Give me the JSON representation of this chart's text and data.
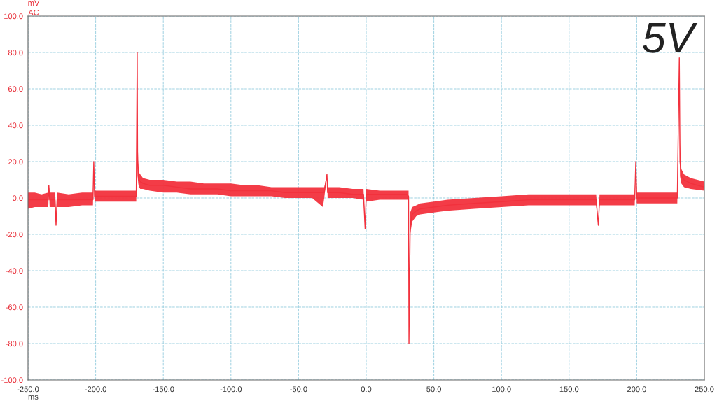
{
  "chart_data": {
    "type": "line",
    "title": "5V",
    "xlabel": "ms",
    "ylabel": "mV\nAC",
    "xlim": [
      -250,
      250
    ],
    "ylim": [
      -100,
      100
    ],
    "xticks": [
      {
        "value": -250,
        "label": "-250.0"
      },
      {
        "value": -200,
        "label": "-200.0"
      },
      {
        "value": -150,
        "label": "-150.0"
      },
      {
        "value": -100,
        "label": "-100.0"
      },
      {
        "value": -50,
        "label": "-50.0"
      },
      {
        "value": 0,
        "label": "0.0"
      },
      {
        "value": 50,
        "label": "50.0"
      },
      {
        "value": 100,
        "label": "100.0"
      },
      {
        "value": 150,
        "label": "150.0"
      },
      {
        "value": 200,
        "label": "200.0"
      },
      {
        "value": 250,
        "label": "250.0"
      }
    ],
    "yticks": [
      {
        "value": -100,
        "label": "-100.0"
      },
      {
        "value": -80,
        "label": "-80.0"
      },
      {
        "value": -60,
        "label": "-60.0"
      },
      {
        "value": -40,
        "label": "-40.0"
      },
      {
        "value": -20,
        "label": "-20.0"
      },
      {
        "value": 0,
        "label": "0.0"
      },
      {
        "value": 20,
        "label": "20.0"
      },
      {
        "value": 40,
        "label": "40.0"
      },
      {
        "value": 60,
        "label": "60.0"
      },
      {
        "value": 80,
        "label": "80.0"
      },
      {
        "value": 100,
        "label": "100.0"
      }
    ],
    "grid": true,
    "line_style": "solid",
    "series": [
      {
        "color": "#f2313d",
        "x": [
          -250,
          -245,
          -240,
          -235,
          -234.6,
          -234,
          -230,
          -229.3,
          -228.5,
          -220,
          -210,
          -202,
          -201.4,
          -200.8,
          -190,
          -180,
          -170,
          -169.3,
          -169,
          -168.5,
          -168,
          -167,
          -165,
          -160,
          -150,
          -140,
          -130,
          -120,
          -110,
          -100,
          -90,
          -80,
          -70,
          -60,
          -50,
          -40,
          -32,
          -31,
          -29,
          -28.5,
          -25,
          -20,
          -10,
          -2,
          -0.8,
          0,
          10,
          20,
          30,
          31.3,
          31.6,
          32.5,
          34,
          37,
          40,
          50,
          60,
          80,
          100,
          120,
          140,
          160,
          170,
          171.6,
          172.5,
          180,
          190,
          198.5,
          199.3,
          200,
          210,
          220,
          230,
          231.5,
          232,
          233,
          235,
          240,
          250
        ],
        "values": [
          -1,
          -1,
          -1,
          -1,
          7,
          -1,
          -1,
          -15,
          -1,
          -1,
          -1,
          -1,
          20,
          1,
          1,
          1,
          1,
          80,
          20,
          12,
          10,
          9,
          8,
          7,
          7,
          6,
          5,
          5,
          5,
          4,
          4,
          4,
          4,
          3,
          3,
          3,
          3,
          3,
          13,
          3,
          3,
          3,
          2,
          2,
          -17,
          2,
          2,
          2,
          2,
          1,
          -80,
          -15,
          -9,
          -7,
          -6,
          -5,
          -4,
          -3,
          -2,
          -1,
          -1,
          -1,
          -1,
          -15,
          -1,
          -1,
          -1,
          -1,
          20,
          0,
          0,
          0,
          0,
          77,
          20,
          12,
          10,
          8,
          6
        ],
        "lower": [
          -6,
          -5,
          -5,
          -5,
          7,
          -5,
          -5,
          -15,
          -5,
          -5,
          -4,
          -4,
          20,
          -2,
          -2,
          -2,
          -2,
          80,
          12,
          8,
          6,
          5,
          5,
          4,
          3,
          3,
          2,
          2,
          2,
          1,
          1,
          1,
          1,
          0,
          0,
          0,
          -5,
          0,
          13,
          0,
          0,
          0,
          0,
          -1,
          -17,
          -2,
          -1,
          -1,
          -1,
          -1,
          -80,
          -20,
          -13,
          -10,
          -9,
          -8,
          -7,
          -6,
          -5,
          -4,
          -4,
          -4,
          -4,
          -15,
          -4,
          -4,
          -4,
          -4,
          20,
          -3,
          -3,
          -3,
          -3,
          77,
          12,
          8,
          6,
          5,
          4
        ],
        "upper": [
          3,
          3,
          2,
          3,
          7,
          3,
          3,
          -15,
          3,
          2,
          3,
          3,
          20,
          4,
          4,
          4,
          4,
          80,
          32,
          20,
          14,
          13,
          11,
          10,
          10,
          9,
          9,
          8,
          8,
          8,
          7,
          7,
          6,
          6,
          6,
          6,
          6,
          6,
          13,
          6,
          6,
          6,
          5,
          5,
          -17,
          5,
          4,
          4,
          4,
          4,
          -80,
          -8,
          -5,
          -4,
          -3,
          -2,
          -1,
          0,
          1,
          2,
          2,
          2,
          2,
          -15,
          2,
          2,
          2,
          2,
          20,
          3,
          3,
          3,
          3,
          77,
          30,
          16,
          13,
          11,
          9
        ]
      }
    ]
  }
}
